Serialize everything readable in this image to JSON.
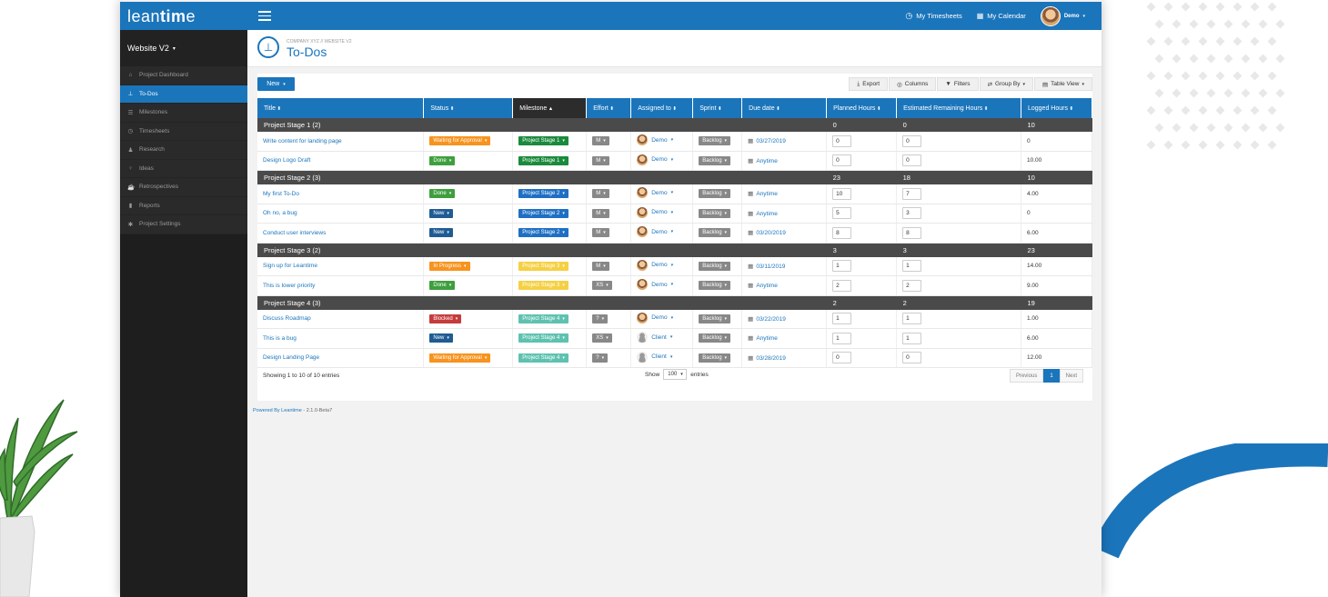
{
  "header": {
    "logo_pre": "lean",
    "logo_bold": "tim",
    "logo_post": "e",
    "timesheets": "My Timesheets",
    "calendar": "My Calendar",
    "user": "Demo"
  },
  "sidebar": {
    "project": "Website V2",
    "items": [
      {
        "label": "Project Dashboard",
        "icon": "home-icon"
      },
      {
        "label": "To-Dos",
        "icon": "pin-icon"
      },
      {
        "label": "Milestones",
        "icon": "sliders-icon"
      },
      {
        "label": "Timesheets",
        "icon": "clock-icon"
      },
      {
        "label": "Research",
        "icon": "user-icon"
      },
      {
        "label": "Ideas",
        "icon": "bulb-icon"
      },
      {
        "label": "Retrospectives",
        "icon": "coffee-icon"
      },
      {
        "label": "Reports",
        "icon": "bar-chart-icon"
      },
      {
        "label": "Project Settings",
        "icon": "gear-icon"
      }
    ]
  },
  "page": {
    "breadcrumb": "COMPANY XYZ // WEBSITE V2",
    "title": "To-Dos"
  },
  "toolbar": {
    "new": "New",
    "export": "Export",
    "columns": "Columns",
    "filters": "Filters",
    "group_by": "Group By",
    "table_view": "Table View"
  },
  "table": {
    "columns": [
      "Title",
      "Status",
      "Milestone",
      "Effort",
      "Assigned to",
      "Sprint",
      "Due date",
      "Planned Hours",
      "Estimated Remaining Hours",
      "Logged Hours"
    ],
    "groups": [
      {
        "name": "Project Stage 1 (2)",
        "planned": "0",
        "remaining": "0",
        "logged": "10",
        "rows": [
          {
            "title": "Write content for landing page",
            "status": "Waiting for Approval",
            "status_color": "#f7931e",
            "milestone": "Project Stage 1",
            "ms_color": "#1a8a3c",
            "effort": "M",
            "user": "Demo",
            "user_avatar": "photo",
            "sprint": "Backlog",
            "due": "03/27/2019",
            "planned": "0",
            "remaining": "0",
            "logged": "0"
          },
          {
            "title": "Design Logo Draft",
            "status": "Done",
            "status_color": "#3e9f3e",
            "milestone": "Project Stage 1",
            "ms_color": "#1a8a3c",
            "effort": "M",
            "user": "Demo",
            "user_avatar": "photo",
            "sprint": "Backlog",
            "due": "Anytime",
            "planned": "0",
            "remaining": "0",
            "logged": "10.00"
          }
        ]
      },
      {
        "name": "Project Stage 2 (3)",
        "planned": "23",
        "remaining": "18",
        "logged": "10",
        "rows": [
          {
            "title": "My first To-Do",
            "status": "Done",
            "status_color": "#3e9f3e",
            "milestone": "Project Stage 2",
            "ms_color": "#1e6fc4",
            "effort": "M",
            "user": "Demo",
            "user_avatar": "photo",
            "sprint": "Backlog",
            "due": "Anytime",
            "planned": "10",
            "remaining": "7",
            "logged": "4.00"
          },
          {
            "title": "Oh no, a bug",
            "status": "New",
            "status_color": "#1f5c94",
            "milestone": "Project Stage 2",
            "ms_color": "#1e6fc4",
            "effort": "M",
            "user": "Demo",
            "user_avatar": "photo",
            "sprint": "Backlog",
            "due": "Anytime",
            "planned": "5",
            "remaining": "3",
            "logged": "0"
          },
          {
            "title": "Conduct user interviews",
            "status": "New",
            "status_color": "#1f5c94",
            "milestone": "Project Stage 2",
            "ms_color": "#1e6fc4",
            "effort": "M",
            "user": "Demo",
            "user_avatar": "photo",
            "sprint": "Backlog",
            "due": "03/20/2019",
            "planned": "8",
            "remaining": "8",
            "logged": "6.00"
          }
        ]
      },
      {
        "name": "Project Stage 3 (2)",
        "planned": "3",
        "remaining": "3",
        "logged": "23",
        "rows": [
          {
            "title": "Sign up for Leantime",
            "status": "In Progress",
            "status_color": "#f7931e",
            "milestone": "Project Stage 3",
            "ms_color": "#f5d043",
            "effort": "M",
            "user": "Demo",
            "user_avatar": "photo",
            "sprint": "Backlog",
            "due": "03/11/2019",
            "planned": "1",
            "remaining": "1",
            "logged": "14.00"
          },
          {
            "title": "This is lower priority",
            "status": "Done",
            "status_color": "#3e9f3e",
            "milestone": "Project Stage 3",
            "ms_color": "#f5d043",
            "effort": "XS",
            "user": "Demo",
            "user_avatar": "photo",
            "sprint": "Backlog",
            "due": "Anytime",
            "planned": "2",
            "remaining": "2",
            "logged": "9.00"
          }
        ]
      },
      {
        "name": "Project Stage 4 (3)",
        "planned": "2",
        "remaining": "2",
        "logged": "19",
        "rows": [
          {
            "title": "Discuss Roadmap",
            "status": "Blocked",
            "status_color": "#c63b3b",
            "milestone": "Project Stage 4",
            "ms_color": "#5fc2b0",
            "effort": "?",
            "user": "Demo",
            "user_avatar": "photo",
            "sprint": "Backlog",
            "due": "03/22/2019",
            "planned": "1",
            "remaining": "1",
            "logged": "1.00"
          },
          {
            "title": "This is a bug",
            "status": "New",
            "status_color": "#1f5c94",
            "milestone": "Project Stage 4",
            "ms_color": "#5fc2b0",
            "effort": "XS",
            "user": "Client",
            "user_avatar": "silhouette",
            "sprint": "Backlog",
            "due": "Anytime",
            "planned": "1",
            "remaining": "1",
            "logged": "6.00"
          },
          {
            "title": "Design Landing Page",
            "status": "Waiting for Approval",
            "status_color": "#f7931e",
            "milestone": "Project Stage 4",
            "ms_color": "#5fc2b0",
            "effort": "?",
            "user": "Client",
            "user_avatar": "silhouette",
            "sprint": "Backlog",
            "due": "03/28/2019",
            "planned": "0",
            "remaining": "0",
            "logged": "12.00"
          }
        ]
      }
    ]
  },
  "pagination": {
    "showing": "Showing 1 to 10 of 10 entries",
    "show_label": "Show",
    "show_value": "100",
    "entries_label": "entries",
    "previous": "Previous",
    "current": "1",
    "next": "Next"
  },
  "footer": {
    "powered_link": "Powered By Leantime",
    "version": " - 2.1.0-Beta7"
  },
  "colors": {
    "accent": "#1b75bb",
    "sidebar": "#1e1e1e",
    "group_row": "#4a4a4a"
  }
}
